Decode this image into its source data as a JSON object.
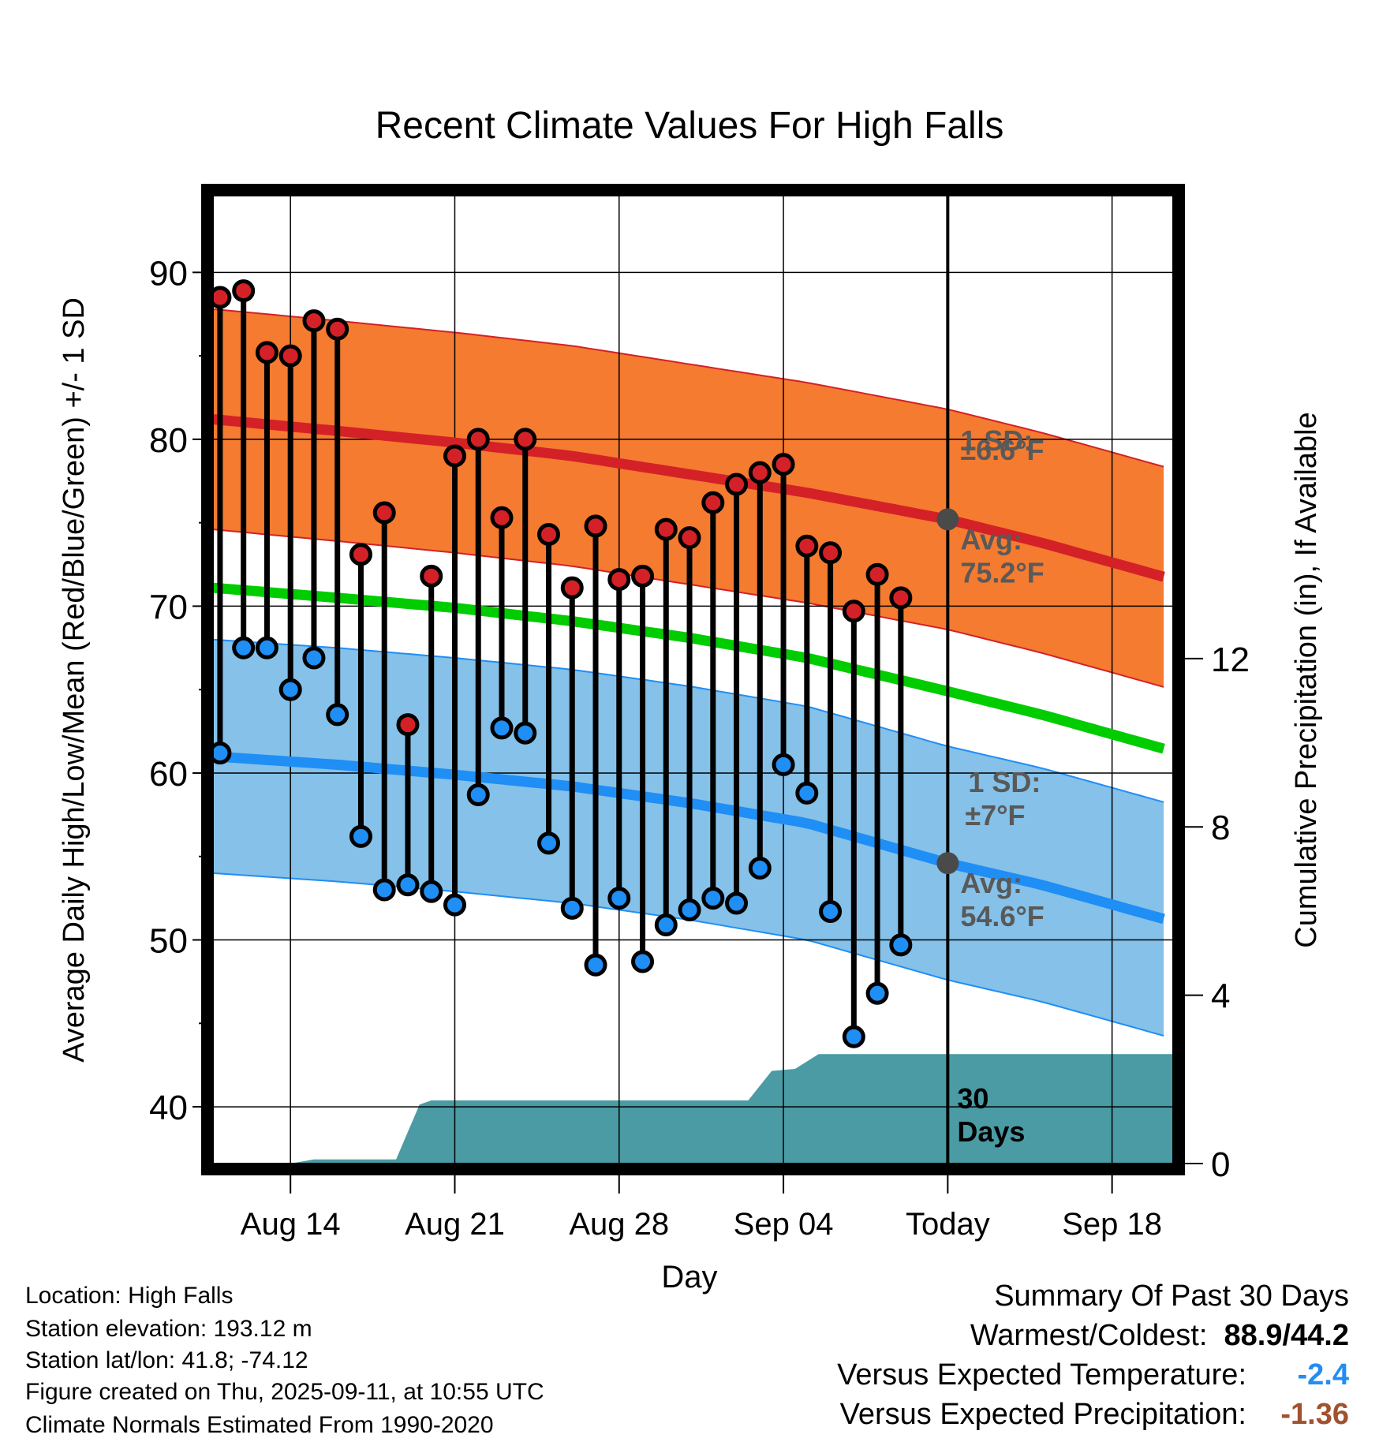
{
  "chart_data": {
    "type": "line",
    "title": "Recent Climate Values For High Falls",
    "xlabel": "Day",
    "ylabel": "Average Daily High/Low/Mean (Red/Blue/Green) +/- 1 SD",
    "ylabel_right": "Cumulative Precipitation (in), If Available",
    "x_tick_labels": [
      "Aug 14",
      "Aug 21",
      "Aug 28",
      "Sep 04",
      "Today",
      "Sep 18"
    ],
    "x_tick_days": [
      3,
      10,
      17,
      24,
      31,
      38
    ],
    "y_ticks": [
      40,
      50,
      60,
      70,
      80,
      90
    ],
    "ylim": [
      36.6,
      94.6
    ],
    "y2_ticks": [
      0,
      4,
      8,
      12
    ],
    "y2lim": [
      0,
      23
    ],
    "xlim": [
      -0.3,
      40.6
    ],
    "colors": {
      "high_band": "#f47b30",
      "high_mean_line": "#d42127",
      "high_band_edge": "#d42127",
      "low_band": "#85c1e8",
      "low_mean_line": "#1f8ef5",
      "low_band_edge": "#1f8ef5",
      "mean_line": "#00cc00",
      "precip": "#4a9ba4",
      "high_marker": "#d42127",
      "low_marker": "#1f8ef5",
      "today_marker": "#4a4a4a",
      "annotation_text": "#595959"
    },
    "days": [
      0,
      1,
      2,
      3,
      4,
      5,
      6,
      7,
      8,
      9,
      10,
      11,
      12,
      13,
      14,
      15,
      16,
      17,
      18,
      19,
      20,
      21,
      22,
      23,
      24,
      25,
      26,
      27,
      28,
      29
    ],
    "daily_high": [
      88.5,
      88.9,
      85.2,
      85.0,
      87.1,
      86.6,
      73.1,
      75.6,
      62.9,
      71.8,
      79.0,
      80.0,
      75.3,
      80.0,
      74.3,
      71.1,
      74.8,
      71.6,
      71.8,
      74.6,
      74.1,
      76.2,
      77.3,
      78.0,
      78.5,
      73.6,
      73.2,
      69.7,
      71.9,
      70.5
    ],
    "daily_low": [
      61.2,
      67.5,
      67.5,
      65.0,
      66.9,
      63.5,
      56.2,
      53.0,
      53.3,
      52.9,
      52.1,
      58.7,
      62.7,
      62.4,
      55.8,
      51.9,
      48.5,
      52.5,
      48.7,
      50.9,
      51.8,
      52.5,
      52.2,
      54.3,
      60.5,
      58.8,
      51.7,
      44.2,
      46.8,
      49.7
    ],
    "normal_x": [
      -0.3,
      5,
      10,
      15,
      20,
      25,
      31,
      35,
      40.6
    ],
    "normal_high_avg": [
      81.2,
      80.5,
      79.8,
      79.0,
      77.9,
      76.8,
      75.2,
      73.8,
      71.6
    ],
    "normal_high_sd": 6.6,
    "normal_low_avg": [
      61.0,
      60.5,
      59.9,
      59.2,
      58.2,
      57.0,
      54.6,
      53.3,
      51.1
    ],
    "normal_low_sd": 7.0,
    "normal_mean": [
      71.1,
      70.5,
      69.9,
      69.1,
      68.1,
      66.9,
      64.9,
      63.5,
      61.3
    ],
    "precip_x": [
      -0.3,
      3,
      4,
      7.5,
      8.5,
      9,
      10,
      22.5,
      23.5,
      24.5,
      25.5,
      40.6
    ],
    "precip_cum": [
      0,
      0,
      0.1,
      0.1,
      1.4,
      1.5,
      1.5,
      1.5,
      2.2,
      2.25,
      2.6,
      2.6
    ],
    "today_day": 31,
    "today_high_avg": 75.2,
    "today_low_avg": 54.6,
    "annotations": {
      "high_sd_label": "1 SD:",
      "high_sd_value": "±6.6°F",
      "high_avg_label": "Avg:",
      "high_avg_value": "75.2°F",
      "low_sd_label": "1 SD:",
      "low_sd_value": "±7°F",
      "low_avg_label": "Avg:",
      "low_avg_value": "54.6°F",
      "days_label_1": "30",
      "days_label_2": "Days"
    }
  },
  "info": {
    "location": "Location: High Falls",
    "elevation": "Station elevation: 193.12 m",
    "latlon": "Station lat/lon: 41.8; -74.12",
    "created": "Figure created on Thu, 2025-09-11, at 10:55 UTC",
    "normals": "Climate Normals Estimated From 1990-2020"
  },
  "summary": {
    "title": "Summary Of Past 30 Days",
    "warm_cold_label": "Warmest/Coldest:",
    "warm_cold_value": "88.9/44.2",
    "temp_label": "Versus Expected Temperature:",
    "temp_value": "-2.4",
    "temp_color": "#1f8ef5",
    "precip_label": "Versus Expected Precipitation:",
    "precip_value": "-1.36",
    "precip_color": "#a0522d"
  }
}
